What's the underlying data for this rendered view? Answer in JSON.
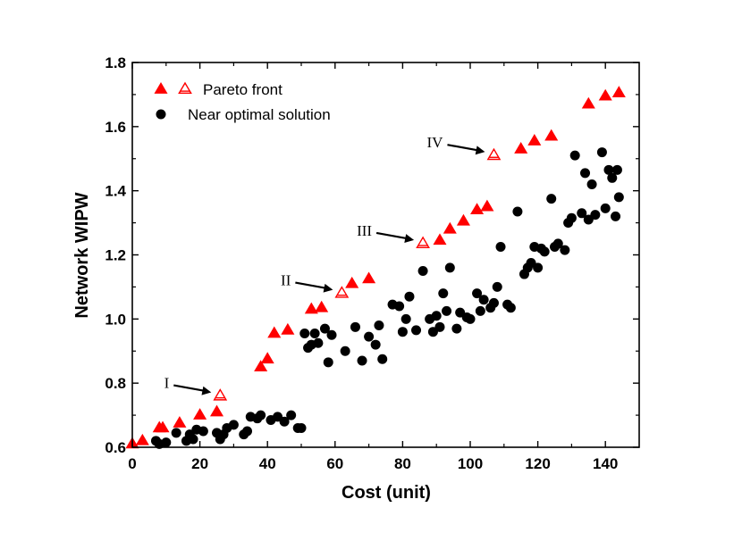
{
  "chart_data": {
    "type": "scatter",
    "xlabel": "Cost (unit)",
    "ylabel": "Network WIPW",
    "xlim": [
      0,
      150
    ],
    "ylim": [
      0.6,
      1.8
    ],
    "x_ticks": [
      0,
      20,
      40,
      60,
      80,
      100,
      120,
      140
    ],
    "y_ticks": [
      0.6,
      0.8,
      1.0,
      1.2,
      1.4,
      1.6,
      1.8
    ],
    "x_tick_labels": [
      "0",
      "20",
      "40",
      "60",
      "80",
      "100",
      "120",
      "140"
    ],
    "y_tick_labels": [
      "0.6",
      "0.8",
      "1.0",
      "1.2",
      "1.4",
      "1.6",
      "1.8"
    ],
    "grid": false,
    "legend_position": "top-left",
    "colors": {
      "pareto": "#ff0000",
      "near_optimal": "#000000"
    },
    "series": [
      {
        "name": "Pareto front",
        "marker": "triangle",
        "color": "#ff0000",
        "points": [
          [
            0,
            0.61
          ],
          [
            3,
            0.62
          ],
          [
            8,
            0.66
          ],
          [
            9,
            0.66
          ],
          [
            14,
            0.675
          ],
          [
            20,
            0.7
          ],
          [
            25,
            0.71
          ],
          [
            38,
            0.85
          ],
          [
            40,
            0.875
          ],
          [
            42,
            0.955
          ],
          [
            46,
            0.965
          ],
          [
            53,
            1.03
          ],
          [
            56,
            1.035
          ],
          [
            65,
            1.11
          ],
          [
            70,
            1.125
          ],
          [
            91,
            1.245
          ],
          [
            94,
            1.28
          ],
          [
            98,
            1.305
          ],
          [
            102,
            1.34
          ],
          [
            105,
            1.35
          ],
          [
            115,
            1.53
          ],
          [
            119,
            1.555
          ],
          [
            124,
            1.57
          ],
          [
            135,
            1.67
          ],
          [
            140,
            1.695
          ],
          [
            144,
            1.705
          ]
        ]
      },
      {
        "name": "",
        "marker": "triangle-open",
        "color": "#ff0000",
        "points": [
          [
            26,
            0.76
          ],
          [
            62,
            1.08
          ],
          [
            86,
            1.235
          ],
          [
            107,
            1.51
          ]
        ]
      },
      {
        "name": "Near optimal solution",
        "marker": "circle",
        "color": "#000000",
        "points": [
          [
            7,
            0.62
          ],
          [
            8,
            0.61
          ],
          [
            10,
            0.615
          ],
          [
            13,
            0.645
          ],
          [
            16,
            0.62
          ],
          [
            17,
            0.64
          ],
          [
            18,
            0.625
          ],
          [
            19,
            0.655
          ],
          [
            21,
            0.65
          ],
          [
            25,
            0.645
          ],
          [
            26,
            0.625
          ],
          [
            27,
            0.64
          ],
          [
            28,
            0.66
          ],
          [
            30,
            0.67
          ],
          [
            33,
            0.64
          ],
          [
            34,
            0.65
          ],
          [
            35,
            0.695
          ],
          [
            37,
            0.69
          ],
          [
            38,
            0.7
          ],
          [
            41,
            0.685
          ],
          [
            43,
            0.695
          ],
          [
            45,
            0.68
          ],
          [
            47,
            0.7
          ],
          [
            49,
            0.66
          ],
          [
            50,
            0.66
          ],
          [
            51,
            0.955
          ],
          [
            52,
            0.91
          ],
          [
            53,
            0.92
          ],
          [
            54,
            0.955
          ],
          [
            55,
            0.925
          ],
          [
            57,
            0.97
          ],
          [
            58,
            0.865
          ],
          [
            59,
            0.95
          ],
          [
            63,
            0.9
          ],
          [
            66,
            0.975
          ],
          [
            68,
            0.87
          ],
          [
            70,
            0.945
          ],
          [
            72,
            0.92
          ],
          [
            73,
            0.98
          ],
          [
            74,
            0.875
          ],
          [
            77,
            1.045
          ],
          [
            79,
            1.04
          ],
          [
            80,
            0.96
          ],
          [
            81,
            1.0
          ],
          [
            82,
            1.07
          ],
          [
            84,
            0.965
          ],
          [
            86,
            1.15
          ],
          [
            88,
            1.0
          ],
          [
            89,
            0.96
          ],
          [
            90,
            1.01
          ],
          [
            91,
            0.975
          ],
          [
            92,
            1.08
          ],
          [
            93,
            1.025
          ],
          [
            94,
            1.16
          ],
          [
            96,
            0.97
          ],
          [
            97,
            1.02
          ],
          [
            99,
            1.005
          ],
          [
            100,
            1.0
          ],
          [
            102,
            1.08
          ],
          [
            103,
            1.025
          ],
          [
            104,
            1.06
          ],
          [
            106,
            1.035
          ],
          [
            107,
            1.05
          ],
          [
            108,
            1.1
          ],
          [
            109,
            1.225
          ],
          [
            111,
            1.045
          ],
          [
            112,
            1.035
          ],
          [
            114,
            1.335
          ],
          [
            116,
            1.14
          ],
          [
            117,
            1.16
          ],
          [
            118,
            1.175
          ],
          [
            119,
            1.225
          ],
          [
            120,
            1.16
          ],
          [
            121,
            1.22
          ],
          [
            122,
            1.21
          ],
          [
            124,
            1.375
          ],
          [
            125,
            1.225
          ],
          [
            126,
            1.235
          ],
          [
            128,
            1.215
          ],
          [
            129,
            1.3
          ],
          [
            130,
            1.315
          ],
          [
            131,
            1.51
          ],
          [
            133,
            1.33
          ],
          [
            134,
            1.455
          ],
          [
            135,
            1.31
          ],
          [
            136,
            1.42
          ],
          [
            137,
            1.325
          ],
          [
            139,
            1.52
          ],
          [
            140,
            1.345
          ],
          [
            141,
            1.465
          ],
          [
            142,
            1.44
          ],
          [
            143,
            1.32
          ],
          [
            143.5,
            1.465
          ],
          [
            144,
            1.38
          ]
        ]
      }
    ],
    "legend": [
      {
        "label": "Pareto front",
        "markers": [
          "triangle",
          "triangle-open"
        ]
      },
      {
        "label": "Near optimal solution",
        "markers": [
          "circle"
        ]
      }
    ],
    "annotations": [
      {
        "label": "I",
        "target": [
          26,
          0.76
        ]
      },
      {
        "label": "II",
        "target": [
          62,
          1.08
        ]
      },
      {
        "label": "III",
        "target": [
          86,
          1.235
        ]
      },
      {
        "label": "IV",
        "target": [
          107,
          1.51
        ]
      }
    ]
  }
}
